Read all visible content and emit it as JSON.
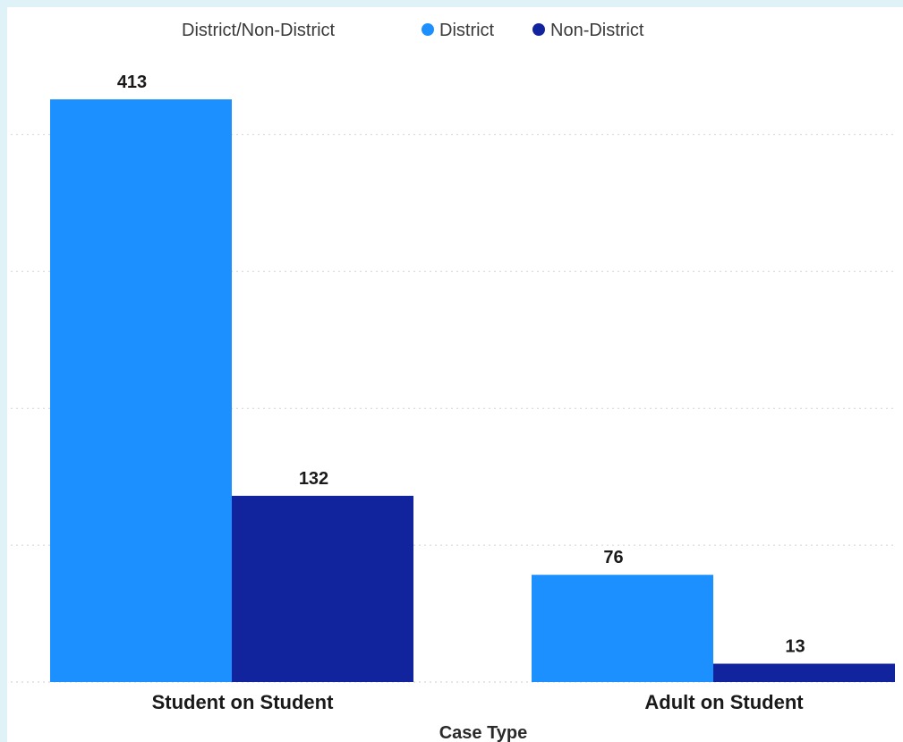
{
  "legend": {
    "title": "District/Non-District",
    "items": [
      {
        "label": "District",
        "color": "#1c90ff"
      },
      {
        "label": "Non-District",
        "color": "#12239e"
      }
    ]
  },
  "chart_data": {
    "type": "bar",
    "categories": [
      "Student on Student",
      "Adult on Student"
    ],
    "series": [
      {
        "name": "District",
        "values": [
          413,
          76
        ],
        "color": "#1c90ff"
      },
      {
        "name": "Non-District",
        "values": [
          132,
          13
        ],
        "color": "#12239e"
      }
    ],
    "xlabel": "Case Type",
    "ylabel": "",
    "ylim": [
      0,
      413
    ],
    "grid": true,
    "legend_position": "top-left",
    "data_labels": true
  }
}
